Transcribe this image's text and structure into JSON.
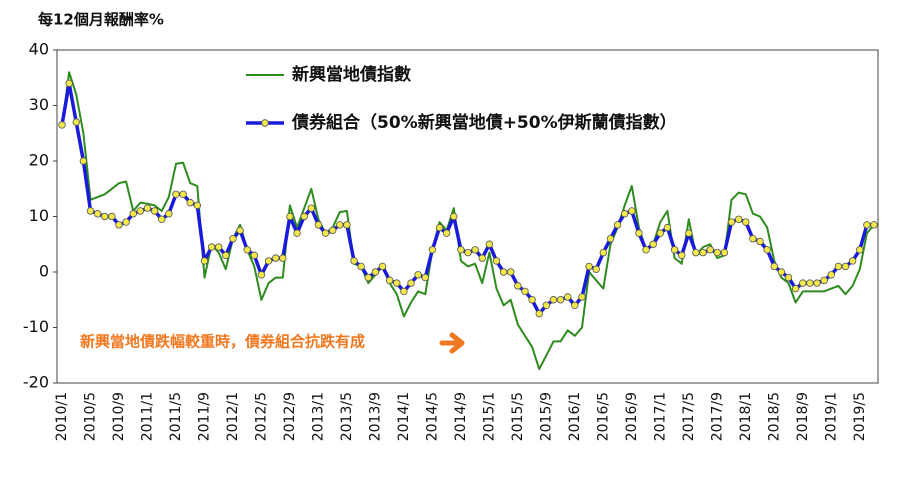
{
  "chart_data": {
    "type": "line",
    "title": "每12個月報酬率%",
    "categories": [
      "2010/1",
      null,
      null,
      null,
      "2010/5",
      null,
      null,
      null,
      "2010/9",
      null,
      null,
      null,
      "2011/1",
      null,
      null,
      null,
      "2011/5",
      null,
      null,
      null,
      "2011/9",
      null,
      null,
      null,
      "2012/1",
      null,
      null,
      null,
      "2012/5",
      null,
      null,
      null,
      "2012/9",
      null,
      null,
      null,
      "2013/1",
      null,
      null,
      null,
      "2013/5",
      null,
      null,
      null,
      "2013/9",
      null,
      null,
      null,
      "2014/1",
      null,
      null,
      null,
      "2014/5",
      null,
      null,
      null,
      "2014/9",
      null,
      null,
      null,
      "2015/1",
      null,
      null,
      null,
      "2015/5",
      null,
      null,
      null,
      "2015/9",
      null,
      null,
      null,
      "2016/1",
      null,
      null,
      null,
      "2016/5",
      null,
      null,
      null,
      "2016/9",
      null,
      null,
      null,
      "2017/1",
      null,
      null,
      null,
      "2017/5",
      null,
      null,
      null,
      "2017/9",
      null,
      null,
      null,
      "2018/1",
      null,
      null,
      null,
      "2018/5",
      null,
      null,
      null,
      "2018/9",
      null,
      null,
      null,
      "2019/1",
      null,
      null,
      null,
      "2019/5",
      null,
      null
    ],
    "series": [
      {
        "name": "新興當地債指數",
        "color": "#2e8b1e",
        "values": [
          26,
          36,
          32,
          25,
          13,
          13.5,
          14,
          15,
          16,
          16.3,
          11,
          12.5,
          12.3,
          12,
          11,
          13.5,
          19.5,
          19.7,
          16,
          15.5,
          -1,
          5,
          3.5,
          0.5,
          6,
          8.5,
          4,
          1,
          -5,
          -2,
          -1,
          -1,
          12,
          8,
          11.5,
          15,
          9.5,
          7,
          8,
          10.8,
          11,
          1.5,
          1,
          -2,
          -0.5,
          1,
          -2,
          -4,
          -8,
          -5.5,
          -3.5,
          -4,
          4,
          9,
          7.5,
          11.5,
          2,
          1,
          1.5,
          -2,
          3.5,
          -3,
          -6,
          -5,
          -9.5,
          -11.5,
          -13.5,
          -17.5,
          -15,
          -12.5,
          -12.5,
          -10.5,
          -11.5,
          -10,
          0,
          -1.5,
          -3,
          5,
          8,
          12,
          15.5,
          8,
          4,
          5,
          9,
          11,
          2.5,
          1.5,
          9.5,
          3,
          4.5,
          5,
          2.5,
          3,
          13,
          14.3,
          14,
          10.5,
          10,
          8,
          2,
          -1,
          -2,
          -5.5,
          -3.5,
          -3.5,
          -3.5,
          -3.5,
          -3,
          -2.5,
          -4,
          -2.5,
          0.5,
          7,
          8.5
        ]
      },
      {
        "name": "債券組合（50%新興當地債+50%伊斯蘭債指數）",
        "color": "#1a1adb",
        "marker_color": "#f2e84a",
        "values": [
          26.5,
          34,
          27,
          20,
          11,
          10.5,
          10,
          10,
          8.5,
          9,
          10.5,
          11,
          11.5,
          11,
          9.5,
          10.5,
          14,
          14,
          12.5,
          12,
          2,
          4.5,
          4.5,
          3,
          6,
          7.5,
          4,
          3,
          -0.5,
          2,
          2.5,
          2.5,
          10,
          7,
          10,
          11.5,
          8.5,
          7,
          7.5,
          8.5,
          8.5,
          2,
          1,
          -1,
          0,
          1,
          -1.5,
          -2,
          -3.5,
          -2,
          -0.5,
          -1,
          4,
          8,
          7,
          10,
          4,
          3.5,
          4,
          2.5,
          5,
          2,
          0,
          0,
          -2.5,
          -3.5,
          -5,
          -7.5,
          -6,
          -5,
          -5,
          -4.5,
          -6,
          -4.5,
          1,
          0.5,
          3.5,
          6,
          8.5,
          10.5,
          11,
          7,
          4,
          5,
          7,
          8,
          4,
          3,
          7,
          3.5,
          3.5,
          4,
          3.5,
          3.5,
          9,
          9.5,
          9,
          6,
          5.5,
          4,
          1,
          0,
          -1,
          -3,
          -2,
          -2,
          -2,
          -1.5,
          -0.5,
          1,
          1,
          2,
          4,
          8.5,
          8.5
        ]
      }
    ],
    "ylim": [
      -20,
      40
    ],
    "yticks": [
      -20,
      -10,
      0,
      10,
      20,
      30,
      40
    ],
    "annotation": "新興當地債跌幅較重時，債券組合抗跌有成"
  }
}
